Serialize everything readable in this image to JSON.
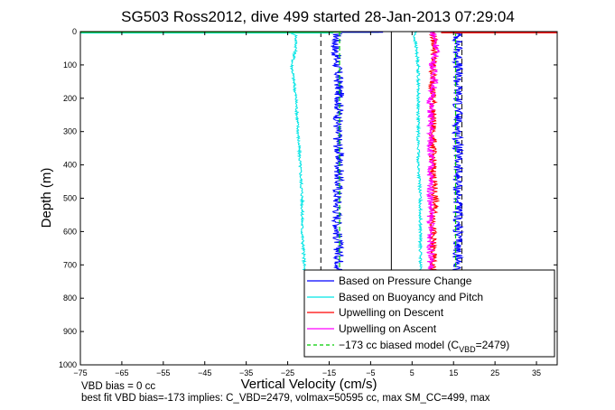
{
  "chart_data": {
    "type": "line",
    "title": "SG503 Ross2012, dive 499 started 28-Jan-2013 07:29:04",
    "xlabel": "Vertical Velocity (cm/s)",
    "ylabel": "Depth (m)",
    "xlim": [
      -75,
      40
    ],
    "ylim": [
      0,
      1000
    ],
    "y_reversed": true,
    "x_ticks": [
      -75,
      -65,
      -55,
      -45,
      -35,
      -25,
      -15,
      -5,
      5,
      15,
      25,
      35
    ],
    "x_tick_labels": [
      "−75",
      "−65",
      "−55",
      "−45",
      "−35",
      "−25",
      "−15",
      "−5",
      "5",
      "15",
      "25",
      "35"
    ],
    "y_ticks": [
      0,
      100,
      200,
      300,
      400,
      500,
      600,
      700,
      800,
      900,
      1000
    ],
    "legend_position": "bottom-right",
    "series": [
      {
        "name": "Based on Pressure Change",
        "color": "#0000ff",
        "style": "solid",
        "descent": {
          "depth": [
            5,
            50,
            100,
            200,
            300,
            400,
            500,
            600,
            700,
            720
          ],
          "velocity": [
            -13,
            -13.5,
            -13,
            -12.5,
            -13,
            -12.5,
            -13,
            -13,
            -12.5,
            -12.5
          ]
        },
        "ascent": {
          "depth": [
            5,
            50,
            100,
            200,
            300,
            400,
            500,
            600,
            700,
            720
          ],
          "velocity": [
            16,
            16,
            16,
            16,
            16,
            16,
            16,
            16,
            16,
            16
          ]
        }
      },
      {
        "name": "Based on Buoyancy and Pitch",
        "color": "#00e5e5",
        "style": "solid",
        "descent": {
          "depth": [
            0,
            10,
            50,
            100,
            150,
            200,
            300,
            400,
            500,
            600,
            700,
            720
          ],
          "velocity": [
            -25,
            -23,
            -23,
            -24,
            -23.5,
            -23,
            -22.5,
            -22,
            -21.5,
            -21.5,
            -21,
            -21
          ]
        },
        "ascent": {
          "depth": [
            0,
            10,
            50,
            100,
            200,
            300,
            400,
            500,
            600,
            700,
            720
          ],
          "velocity": [
            6,
            5.5,
            6,
            6.5,
            6.5,
            6.5,
            6.5,
            7,
            7,
            7,
            7
          ]
        }
      },
      {
        "name": "Upwelling on Descent",
        "color": "#ff0000",
        "style": "solid",
        "depth": [
          0,
          50,
          100,
          200,
          300,
          400,
          500,
          600,
          700,
          720
        ],
        "velocity": [
          10,
          10.5,
          10,
          10,
          10,
          10,
          10.5,
          10,
          10,
          10
        ]
      },
      {
        "name": "Upwelling on Ascent",
        "color": "#ff00ff",
        "style": "solid",
        "depth": [
          0,
          50,
          100,
          150,
          200,
          300,
          400,
          500,
          600,
          700,
          720
        ],
        "velocity": [
          10,
          11,
          10,
          10.5,
          9.5,
          9.5,
          9.5,
          9.5,
          9.5,
          9.5,
          9.5
        ]
      },
      {
        "name": "−173 cc biased model (C_VBD=2479)",
        "color": "#00cc00",
        "style": "dashed",
        "descent": {
          "depth": [
            0,
            100,
            300,
            500,
            720
          ],
          "velocity": [
            -12.5,
            -12.5,
            -12.5,
            -12.5,
            -12.5
          ]
        },
        "ascent": {
          "depth": [
            0,
            100,
            300,
            500,
            720
          ],
          "velocity": [
            15.5,
            15.5,
            15.5,
            15.5,
            15.5
          ]
        }
      }
    ],
    "reference_lines": [
      {
        "x": -17,
        "color": "#000000",
        "style": "dashed"
      },
      {
        "x": 0,
        "color": "#000000",
        "style": "solid"
      },
      {
        "x": 17,
        "color": "#000000",
        "style": "dashed"
      }
    ],
    "legend_labels": {
      "pressure": "Based on Pressure Change",
      "buoyancy": "Based on Buoyancy and Pitch",
      "descent": "Upwelling on Descent",
      "ascent": "Upwelling on Ascent",
      "model_prefix": "−173 cc biased model (C",
      "model_sub": "VBD",
      "model_suffix": "=2479)"
    },
    "footer": [
      "VBD bias = 0 cc",
      "best fit VBD bias=-173 implies: C_VBD=2479, volmax=50595 cc, max SM_CC=499, max"
    ]
  }
}
